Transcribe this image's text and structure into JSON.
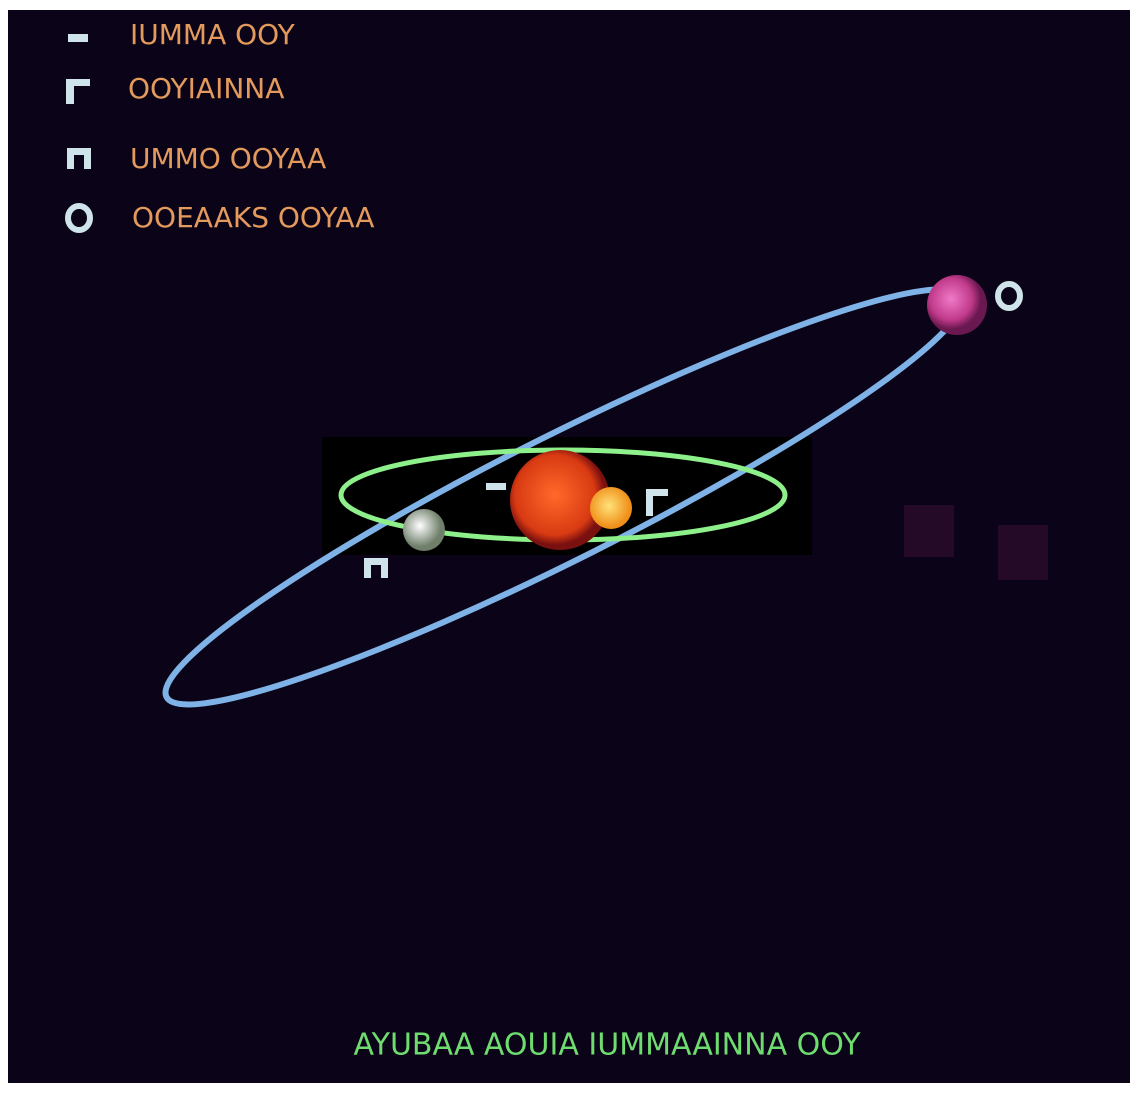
{
  "legend": {
    "items": [
      {
        "label": "IUMMA OOY"
      },
      {
        "label": "OOYIAINNA"
      },
      {
        "label": "UMMO OOYAA"
      },
      {
        "label": "OOEAAKS OOYAA"
      }
    ]
  },
  "caption": "AYUBAA  AOUIA IUMMAAINNA OOY"
}
